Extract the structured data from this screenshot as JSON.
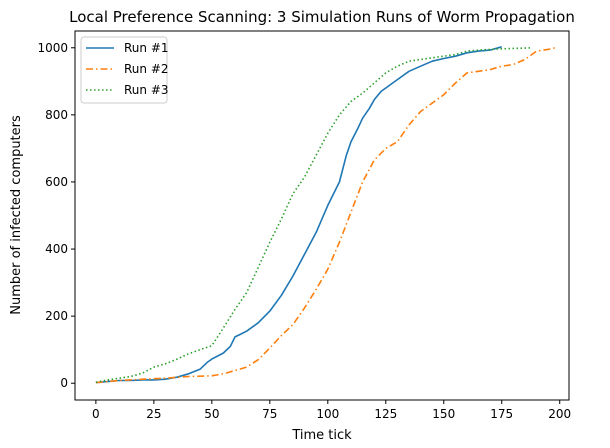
{
  "chart_data": {
    "type": "line",
    "title": "Local Preference Scanning: 3 Simulation Runs of Worm Propagation",
    "xlabel": "Time tick",
    "ylabel": "Number of infected computers",
    "xlim": [
      -9,
      204
    ],
    "ylim": [
      -50,
      1050
    ],
    "xticks": [
      0,
      25,
      50,
      75,
      100,
      125,
      150,
      175,
      200
    ],
    "yticks": [
      0,
      200,
      400,
      600,
      800,
      1000
    ],
    "grid": false,
    "legend_position": "top-left",
    "series": [
      {
        "name": "Run #1",
        "color": "#1f77b4",
        "linestyle": "solid",
        "x": [
          0,
          5,
          10,
          15,
          20,
          25,
          30,
          35,
          40,
          45,
          48,
          50,
          55,
          58,
          60,
          62,
          65,
          70,
          75,
          80,
          85,
          90,
          95,
          100,
          105,
          108,
          110,
          113,
          115,
          118,
          120,
          123,
          125,
          128,
          130,
          135,
          140,
          145,
          150,
          155,
          160,
          165,
          170,
          175
        ],
        "y": [
          2,
          5,
          8,
          8,
          10,
          10,
          12,
          18,
          28,
          42,
          62,
          72,
          90,
          110,
          138,
          145,
          155,
          180,
          215,
          262,
          320,
          385,
          450,
          530,
          600,
          680,
          720,
          760,
          790,
          820,
          845,
          870,
          880,
          895,
          905,
          930,
          945,
          960,
          968,
          975,
          985,
          990,
          993,
          1003
        ]
      },
      {
        "name": "Run #2",
        "color": "#ff7f0e",
        "linestyle": "dashdot",
        "x": [
          0,
          5,
          10,
          20,
          30,
          40,
          50,
          55,
          60,
          65,
          70,
          75,
          80,
          85,
          90,
          95,
          100,
          105,
          110,
          115,
          120,
          125,
          130,
          135,
          140,
          145,
          150,
          155,
          160,
          165,
          170,
          175,
          180,
          185,
          190,
          195,
          198
        ],
        "y": [
          2,
          5,
          8,
          12,
          15,
          20,
          22,
          28,
          38,
          48,
          70,
          105,
          142,
          175,
          225,
          280,
          340,
          420,
          510,
          600,
          665,
          700,
          720,
          770,
          810,
          835,
          860,
          895,
          925,
          930,
          935,
          945,
          950,
          965,
          990,
          995,
          1000
        ]
      },
      {
        "name": "Run #3",
        "color": "#2ca02c",
        "linestyle": "dotted",
        "x": [
          0,
          5,
          10,
          15,
          20,
          25,
          30,
          35,
          40,
          45,
          50,
          55,
          60,
          65,
          70,
          75,
          80,
          85,
          90,
          95,
          100,
          105,
          110,
          115,
          120,
          125,
          130,
          135,
          140,
          145,
          150,
          155,
          160,
          165,
          170,
          175,
          180,
          185,
          188
        ],
        "y": [
          3,
          10,
          15,
          20,
          30,
          48,
          58,
          72,
          88,
          100,
          112,
          165,
          220,
          270,
          345,
          420,
          490,
          565,
          615,
          680,
          745,
          800,
          840,
          865,
          895,
          925,
          945,
          960,
          965,
          970,
          975,
          980,
          990,
          993,
          995,
          997,
          998,
          999,
          1000
        ]
      }
    ]
  }
}
